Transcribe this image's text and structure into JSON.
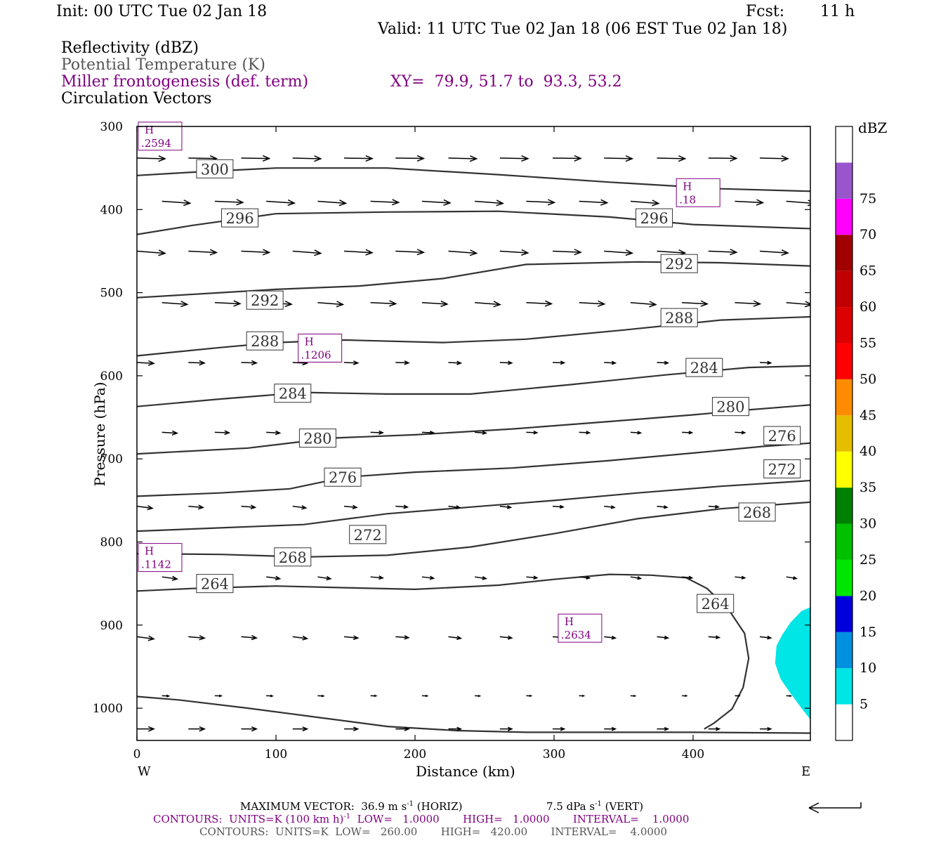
{
  "header": {
    "init": "Init: 00 UTC Tue 02 Jan 18",
    "fcst_label": "Fcst:",
    "fcst_value": "11 h",
    "valid": "Valid: 11 UTC Tue 02 Jan 18 (06 EST Tue 02 Jan 18)"
  },
  "fields": {
    "reflectivity": "Reflectivity (dBZ)",
    "theta": "Potential Temperature (K)",
    "frontogenesis": "Miller frontogenesis (def. term)",
    "xy": "XY=  79.9, 51.7 to  93.3, 53.2",
    "vectors": "Circulation Vectors"
  },
  "colors": {
    "theta_contour": "#333333",
    "frontogenesis": "#800080",
    "vectors": "#000000"
  },
  "colorbar": {
    "unit": "dBZ",
    "bins": [
      {
        "from": 0,
        "to": 5,
        "color": "#ffffff"
      },
      {
        "from": 5,
        "to": 10,
        "color": "#00e5e5"
      },
      {
        "from": 10,
        "to": 15,
        "color": "#0090e0"
      },
      {
        "from": 15,
        "to": 20,
        "color": "#0000dd"
      },
      {
        "from": 20,
        "to": 25,
        "color": "#00e600"
      },
      {
        "from": 25,
        "to": 30,
        "color": "#00c000"
      },
      {
        "from": 30,
        "to": 35,
        "color": "#008000"
      },
      {
        "from": 35,
        "to": 40,
        "color": "#ffff00"
      },
      {
        "from": 40,
        "to": 45,
        "color": "#e6be00"
      },
      {
        "from": 45,
        "to": 50,
        "color": "#ff8c00"
      },
      {
        "from": 50,
        "to": 55,
        "color": "#ff0000"
      },
      {
        "from": 55,
        "to": 60,
        "color": "#dd0000"
      },
      {
        "from": 60,
        "to": 65,
        "color": "#c00000"
      },
      {
        "from": 65,
        "to": 70,
        "color": "#a00000"
      },
      {
        "from": 70,
        "to": 75,
        "color": "#ff00ff"
      },
      {
        "from": 75,
        "to": 80,
        "color": "#9955cc"
      },
      {
        "from": 80,
        "to": 85,
        "color": "#ffffff"
      }
    ],
    "tick_labels": [
      "5",
      "10",
      "15",
      "20",
      "25",
      "30",
      "35",
      "40",
      "45",
      "50",
      "55",
      "60",
      "65",
      "70",
      "75"
    ]
  },
  "chart_data": {
    "type": "cross-section",
    "xlabel": "Distance (km)",
    "ylabel": "Pressure (hPa)",
    "xlim": [
      0,
      485
    ],
    "ylim": [
      1040,
      300
    ],
    "x_ticks": [
      0,
      100,
      200,
      300,
      400
    ],
    "y_ticks": [
      300,
      400,
      500,
      600,
      700,
      800,
      900,
      1000
    ],
    "x_end_labels": {
      "left": "W",
      "right": "E"
    },
    "theta_contours": [
      {
        "level": 300,
        "label": "300",
        "label_at": [
          56,
          351
        ],
        "points": [
          [
            0,
            359
          ],
          [
            40,
            355
          ],
          [
            100,
            350
          ],
          [
            180,
            350
          ],
          [
            260,
            358
          ],
          [
            340,
            367
          ],
          [
            420,
            375
          ],
          [
            485,
            378
          ]
        ]
      },
      {
        "level": 296,
        "label": "296",
        "label_at": [
          74,
          410
        ],
        "points": [
          [
            0,
            430
          ],
          [
            40,
            419
          ],
          [
            100,
            405
          ],
          [
            180,
            403
          ],
          [
            260,
            402
          ],
          [
            340,
            409
          ],
          [
            400,
            418
          ],
          [
            485,
            423
          ]
        ]
      },
      {
        "level": 296,
        "label": "296",
        "label_at": [
          372,
          410
        ],
        "points": []
      },
      {
        "level": 292,
        "label": "292",
        "label_at": [
          92,
          509
        ],
        "points": [
          [
            0,
            506
          ],
          [
            60,
            500
          ],
          [
            100,
            496
          ],
          [
            160,
            492
          ],
          [
            220,
            483
          ],
          [
            280,
            466
          ],
          [
            360,
            463
          ],
          [
            420,
            464
          ],
          [
            485,
            468
          ]
        ]
      },
      {
        "level": 292,
        "label": "292",
        "label_at": [
          390,
          465
        ],
        "points": []
      },
      {
        "level": 288,
        "label": "288",
        "label_at": [
          92,
          558
        ],
        "points": [
          [
            0,
            576
          ],
          [
            60,
            566
          ],
          [
            100,
            560
          ],
          [
            150,
            557
          ],
          [
            220,
            560
          ],
          [
            280,
            556
          ],
          [
            350,
            545
          ],
          [
            420,
            533
          ],
          [
            485,
            529
          ]
        ]
      },
      {
        "level": 288,
        "label": "288",
        "label_at": [
          390,
          530
        ],
        "points": []
      },
      {
        "level": 284,
        "label": "284",
        "label_at": [
          112,
          621
        ],
        "points": [
          [
            0,
            637
          ],
          [
            60,
            628
          ],
          [
            120,
            620
          ],
          [
            180,
            622
          ],
          [
            240,
            622
          ],
          [
            310,
            611
          ],
          [
            380,
            599
          ],
          [
            440,
            590
          ],
          [
            485,
            588
          ]
        ]
      },
      {
        "level": 284,
        "label": "284",
        "label_at": [
          408,
          590
        ],
        "points": []
      },
      {
        "level": 280,
        "label": "280",
        "label_at": [
          130,
          675
        ],
        "points": [
          [
            0,
            694
          ],
          [
            80,
            687
          ],
          [
            140,
            675
          ],
          [
            200,
            671
          ],
          [
            270,
            664
          ],
          [
            340,
            655
          ],
          [
            400,
            647
          ],
          [
            440,
            641
          ],
          [
            485,
            635
          ]
        ]
      },
      {
        "level": 280,
        "label": "280",
        "label_at": [
          427,
          637
        ],
        "points": []
      },
      {
        "level": 276,
        "label": "276",
        "label_at": [
          148,
          722
        ],
        "points": [
          [
            0,
            745
          ],
          [
            60,
            741
          ],
          [
            110,
            736
          ],
          [
            150,
            722
          ],
          [
            200,
            716
          ],
          [
            270,
            711
          ],
          [
            340,
            702
          ],
          [
            400,
            693
          ],
          [
            450,
            685
          ],
          [
            485,
            681
          ]
        ]
      },
      {
        "level": 276,
        "label": "276",
        "label_at": [
          464,
          672
        ],
        "points": []
      },
      {
        "level": 272,
        "label": "272",
        "label_at": [
          166,
          791
        ],
        "points": [
          [
            0,
            787
          ],
          [
            60,
            783
          ],
          [
            120,
            779
          ],
          [
            180,
            766
          ],
          [
            240,
            758
          ],
          [
            300,
            750
          ],
          [
            360,
            741
          ],
          [
            420,
            733
          ],
          [
            485,
            726
          ]
        ]
      },
      {
        "level": 272,
        "label": "272",
        "label_at": [
          464,
          712
        ],
        "points": []
      },
      {
        "level": 268,
        "label": "268",
        "label_at": [
          112,
          818
        ],
        "points": [
          [
            0,
            814
          ],
          [
            60,
            815
          ],
          [
            120,
            818
          ],
          [
            180,
            816
          ],
          [
            240,
            806
          ],
          [
            300,
            790
          ],
          [
            360,
            772
          ],
          [
            420,
            760
          ],
          [
            485,
            752
          ]
        ]
      },
      {
        "level": 268,
        "label": "268",
        "label_at": [
          446,
          764
        ],
        "points": []
      },
      {
        "level": 264,
        "label": "264",
        "label_at": [
          56,
          850
        ],
        "points": [
          [
            0,
            859
          ],
          [
            40,
            856
          ],
          [
            100,
            853
          ],
          [
            150,
            855
          ],
          [
            200,
            857
          ],
          [
            260,
            852
          ],
          [
            300,
            845
          ],
          [
            340,
            839
          ],
          [
            370,
            840
          ],
          [
            395,
            843
          ],
          [
            410,
            856
          ],
          [
            425,
            880
          ],
          [
            437,
            910
          ],
          [
            440,
            940
          ],
          [
            436,
            975
          ],
          [
            428,
            1001
          ],
          [
            415,
            1018
          ],
          [
            408,
            1025
          ]
        ]
      },
      {
        "level": 264,
        "label": "264",
        "label_at": [
          416,
          874
        ],
        "points": []
      },
      {
        "level": 260,
        "label": "",
        "label_at": null,
        "points": [
          [
            0,
            986
          ],
          [
            30,
            990
          ],
          [
            80,
            1000
          ],
          [
            130,
            1011
          ],
          [
            180,
            1022
          ],
          [
            230,
            1027
          ],
          [
            280,
            1029
          ],
          [
            340,
            1029
          ],
          [
            400,
            1029
          ],
          [
            485,
            1030
          ]
        ]
      }
    ],
    "frontogenesis_maxima": [
      {
        "label": "H",
        "value": ".2594",
        "x": 3,
        "p": 310
      },
      {
        "label": "H",
        "value": ".18",
        "x": 390,
        "p": 378
      },
      {
        "label": "H",
        "value": ".1206",
        "x": 118,
        "p": 565
      },
      {
        "label": "H",
        "value": ".1142",
        "x": 3,
        "p": 817
      },
      {
        "label": "H",
        "value": ".2634",
        "x": 305,
        "p": 902
      }
    ],
    "reflectivity_areas": [
      {
        "dbz_min": 5,
        "dbz_max": 10,
        "points": [
          [
            485,
            878
          ],
          [
            478,
            883
          ],
          [
            470,
            897
          ],
          [
            464,
            912
          ],
          [
            460,
            925
          ],
          [
            459,
            946
          ],
          [
            463,
            965
          ],
          [
            470,
            982
          ],
          [
            478,
            1000
          ],
          [
            485,
            1015
          ]
        ]
      }
    ],
    "vector_grid": {
      "x": [
        0,
        18,
        37,
        56,
        75,
        93,
        112,
        130,
        149,
        168,
        186,
        205,
        224,
        243,
        261,
        280,
        299,
        318,
        336,
        355,
        374,
        392,
        411,
        430,
        448,
        467,
        485
      ],
      "rows": [
        {
          "p": 338,
          "u": 1.0,
          "w": 0.02
        },
        {
          "p": 390,
          "u": 1.0,
          "w": 0.06
        },
        {
          "p": 450,
          "u": 1.0,
          "w": 0.06
        },
        {
          "p": 512,
          "u": 0.9,
          "w": 0.06
        },
        {
          "p": 584,
          "u": 0.6,
          "w": 0.04
        },
        {
          "p": 668,
          "u": 0.55,
          "w": 0.05
        },
        {
          "p": 757,
          "u": 0.55,
          "w": 0.1
        },
        {
          "p": 842,
          "u": 0.55,
          "w": 0.12
        },
        {
          "p": 914,
          "u": 0.6,
          "w": 0.1
        },
        {
          "p": 985,
          "u": 0.25,
          "w": 0.04
        },
        {
          "p": 1025,
          "u": 0.6,
          "w": 0.0
        }
      ]
    }
  },
  "footer": {
    "max_vector": "MAXIMUM VECTOR:  36.9 m s",
    "max_vector_exp": "-1",
    "max_vector_horiz": "(HORIZ)",
    "max_vector_vert": "7.5 dPa s",
    "max_vector_vert_exp": "-1",
    "max_vector_vert_tail": "(VERT)",
    "contours1_a": "CONTOURS:  UNITS=K (100 km h)",
    "contours1_exp": "-1",
    "contours1_b": "LOW=   1.0000       HIGH=   1.0000       INTERVAL=    1.0000",
    "contours2": "CONTOURS:  UNITS=K  LOW=   260.00       HIGH=   420.00       INTERVAL=    4.0000"
  }
}
